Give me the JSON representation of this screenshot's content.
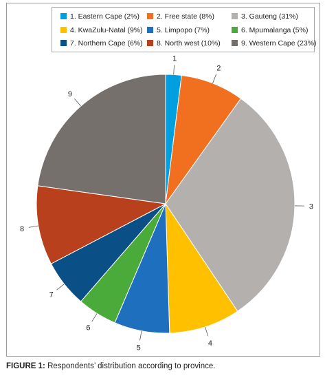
{
  "chart_data": {
    "type": "pie",
    "title": "",
    "legend_position": "top",
    "slices": [
      {
        "label": "1",
        "legend": "1. Eastern Cape (2%)",
        "value": 2,
        "color": "#00a0e0"
      },
      {
        "label": "2",
        "legend": "2. Free state (8%)",
        "value": 8,
        "color": "#f07020"
      },
      {
        "label": "3",
        "legend": "3. Gauteng (31%)",
        "value": 31,
        "color": "#b3b0ae"
      },
      {
        "label": "4",
        "legend": "4. KwaZulu-Natal (9%)",
        "value": 9,
        "color": "#ffc000"
      },
      {
        "label": "5",
        "legend": "5. Limpopo (7%)",
        "value": 7,
        "color": "#1f6fbf"
      },
      {
        "label": "6",
        "legend": "6. Mpumalanga (5%)",
        "value": 5,
        "color": "#4aaa3a"
      },
      {
        "label": "7",
        "legend": "7. Northern Cape (6%)",
        "value": 6,
        "color": "#0a4f85"
      },
      {
        "label": "8",
        "legend": "8. North west (10%)",
        "value": 10,
        "color": "#b8401c"
      },
      {
        "label": "9",
        "legend": "9. Western Cape (23%)",
        "value": 23,
        "color": "#76706d"
      }
    ]
  },
  "caption": {
    "prefix": "FIGURE 1:",
    "text": " Respondents’ distribution according to province."
  }
}
